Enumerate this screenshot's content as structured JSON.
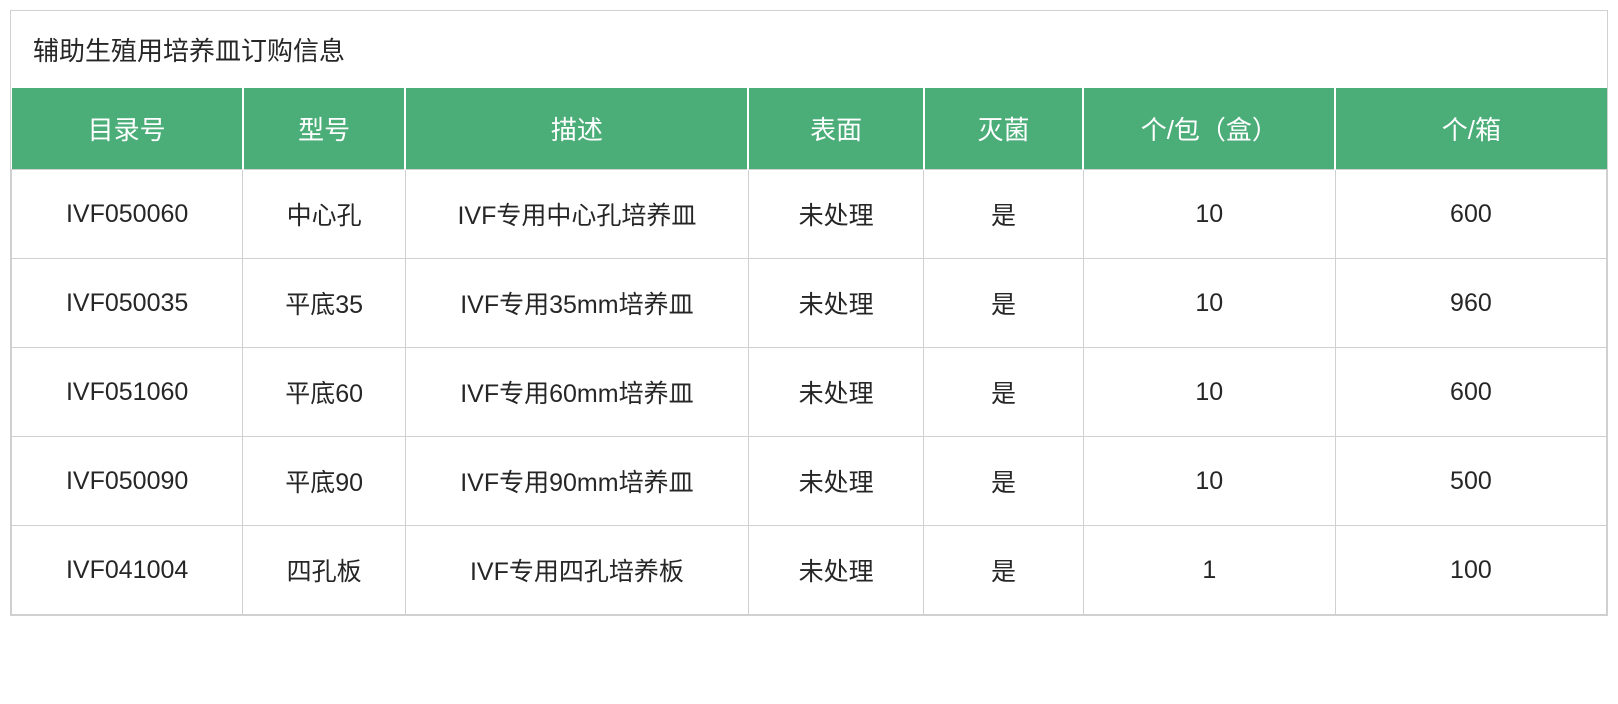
{
  "table": {
    "title": "辅助生殖用培养皿订购信息",
    "header_bg_color": "#4bae79",
    "header_text_color": "#ffffff",
    "border_color": "#d0d0d0",
    "cell_text_color": "#262626",
    "title_fontsize": 26,
    "header_fontsize": 26,
    "cell_fontsize": 25,
    "columns": [
      {
        "label": "目录号",
        "width_pct": 14.5
      },
      {
        "label": "型号",
        "width_pct": 10.2
      },
      {
        "label": "描述",
        "width_pct": 21.5
      },
      {
        "label": "表面",
        "width_pct": 11
      },
      {
        "label": "灭菌",
        "width_pct": 10
      },
      {
        "label": "个/包（盒）",
        "width_pct": 15.8
      },
      {
        "label": "个/箱",
        "width_pct": 17
      }
    ],
    "rows": [
      [
        "IVF050060",
        "中心孔",
        "IVF专用中心孔培养皿",
        "未处理",
        "是",
        "10",
        "600"
      ],
      [
        "IVF050035",
        "平底35",
        "IVF专用35mm培养皿",
        "未处理",
        "是",
        "10",
        "960"
      ],
      [
        "IVF051060",
        "平底60",
        "IVF专用60mm培养皿",
        "未处理",
        "是",
        "10",
        "600"
      ],
      [
        "IVF050090",
        "平底90",
        "IVF专用90mm培养皿",
        "未处理",
        "是",
        "10",
        "500"
      ],
      [
        "IVF041004",
        "四孔板",
        "IVF专用四孔培养板",
        "未处理",
        "是",
        "1",
        "100"
      ]
    ]
  }
}
